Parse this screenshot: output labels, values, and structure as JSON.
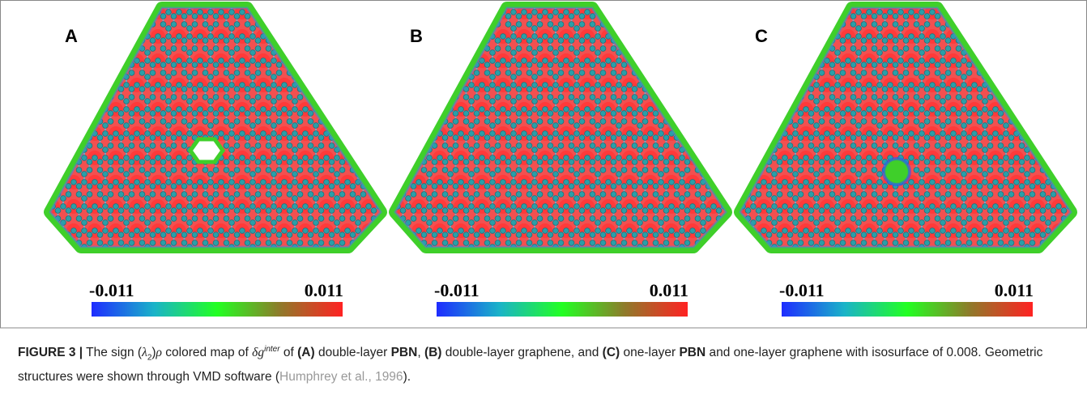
{
  "figure": {
    "panels": [
      {
        "label": "A",
        "colorbar": {
          "min": -0.011,
          "max": 0.011
        }
      },
      {
        "label": "B",
        "colorbar": {
          "min": -0.011,
          "max": 0.011
        }
      },
      {
        "label": "C",
        "colorbar": {
          "min": -0.011,
          "max": 0.011
        }
      }
    ]
  },
  "caption": {
    "parts": [
      "FIGURE 3 |",
      " The sign (",
      "λ",
      "2",
      ")",
      "ρ",
      " colored map of ",
      "δg",
      "inter",
      " of ",
      "(A)",
      " double-layer ",
      "PBN",
      ", ",
      "(B)",
      " double-layer graphene, and ",
      "(C)",
      " one-layer ",
      "PBN",
      " and one-layer graphene with isosurface of 0.008. Geometric structures were shown through VMD software (",
      "Humphrey et al., 1996",
      ")."
    ]
  }
}
